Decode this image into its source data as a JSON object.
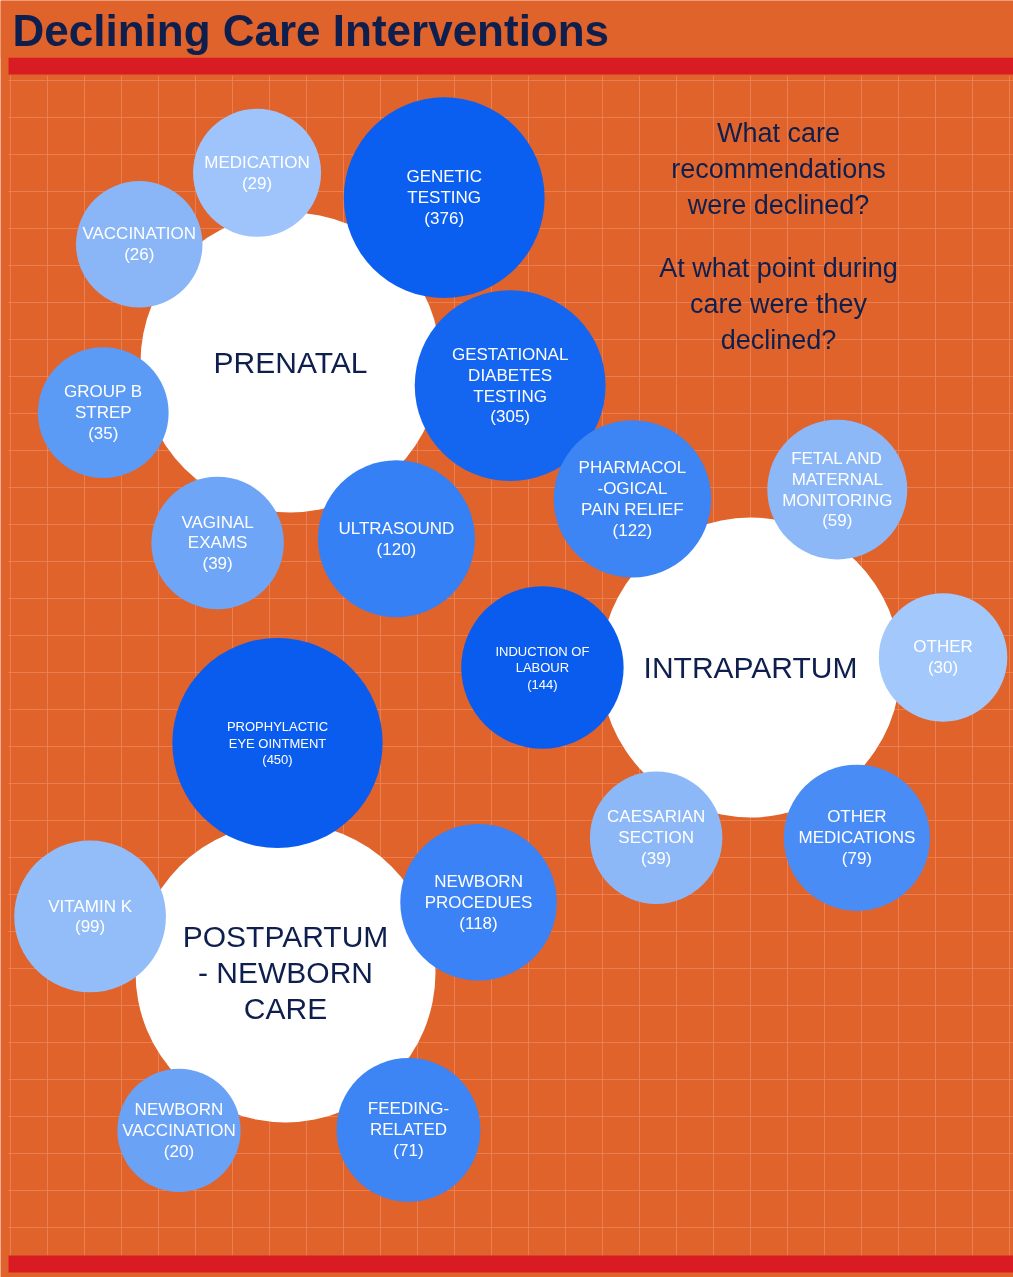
{
  "chart_data": {
    "type": "other",
    "title": "Declining Care Interventions",
    "annotations": [
      "What care\nrecommendations\nwere declined?",
      "At what point during\ncare were they\ndeclined?"
    ],
    "categories": [
      "MEDICATION",
      "GENETIC\nTESTING",
      "GESTATIONAL\nDIABETES\nTESTING",
      "ULTRASOUND",
      "VAGINAL\nEXAMS",
      "GROUP B\nSTREP",
      "VACCINATION",
      "PHARMACOL\n-OGICAL\nPAIN RELIEF",
      "FETAL AND\nMATERNAL\nMONITORING",
      "OTHER",
      "OTHER\nMEDICATIONS",
      "CAESARIAN\nSECTION",
      "INDUCTION OF\nLABOUR",
      "PROPHYLACTIC\nEYE OINTMENT",
      "NEWBORN\nPROCEDUES",
      "FEEDING-\nRELATED",
      "NEWBORN\nVACCINATION",
      "VITAMIN K"
    ],
    "series": [
      {
        "name": "PRENATAL",
        "values": [
          29,
          376,
          305,
          120,
          39,
          35,
          26,
          null,
          null,
          null,
          null,
          null,
          null,
          null,
          null,
          null,
          null,
          null
        ],
        "value_labels": [
          "(29)",
          "(376)",
          "(305)",
          "(120)",
          "(39)",
          "(35)",
          "(26)",
          null,
          null,
          null,
          null,
          null,
          null,
          null,
          null,
          null,
          null,
          null
        ],
        "colors": [
          "#9ec4fb",
          "#0b5ff0",
          "#1466f0",
          "#3580f5",
          "#6ea5f7",
          "#5c9bf5",
          "#8ab6f8",
          null,
          null,
          null,
          null,
          null,
          null,
          null,
          null,
          null,
          null,
          null
        ]
      },
      {
        "name": "INTRAPARTUM",
        "values": [
          null,
          null,
          null,
          null,
          null,
          null,
          null,
          122,
          59,
          30,
          79,
          39,
          144,
          null,
          null,
          null,
          null,
          null
        ],
        "value_labels": [
          null,
          null,
          null,
          null,
          null,
          null,
          null,
          "(122)",
          "(59)",
          "(30)",
          "(79)",
          "(39)",
          "(144)",
          null,
          null,
          null,
          null,
          null
        ],
        "colors": [
          null,
          null,
          null,
          null,
          null,
          null,
          null,
          "#3d84f5",
          "#8db8f8",
          "#a3c8fb",
          "#4a8cf6",
          "#8db8f8",
          "#0a5cef",
          null,
          null,
          null,
          null,
          null
        ]
      },
      {
        "name": "POSTPARTUM\n- NEWBORN\nCARE",
        "values": [
          null,
          null,
          null,
          null,
          null,
          null,
          null,
          null,
          null,
          null,
          null,
          null,
          null,
          450,
          118,
          71,
          20,
          99
        ],
        "value_labels": [
          null,
          null,
          null,
          null,
          null,
          null,
          null,
          null,
          null,
          null,
          null,
          null,
          null,
          "(450)",
          "(118)",
          "(71)",
          "(20)",
          "(99)"
        ],
        "colors": [
          null,
          null,
          null,
          null,
          null,
          null,
          null,
          null,
          null,
          null,
          null,
          null,
          null,
          "#0a5cef",
          "#3a82f5",
          "#3d84f5",
          "#6aa2f6",
          "#93bdf9"
        ]
      }
    ]
  }
}
